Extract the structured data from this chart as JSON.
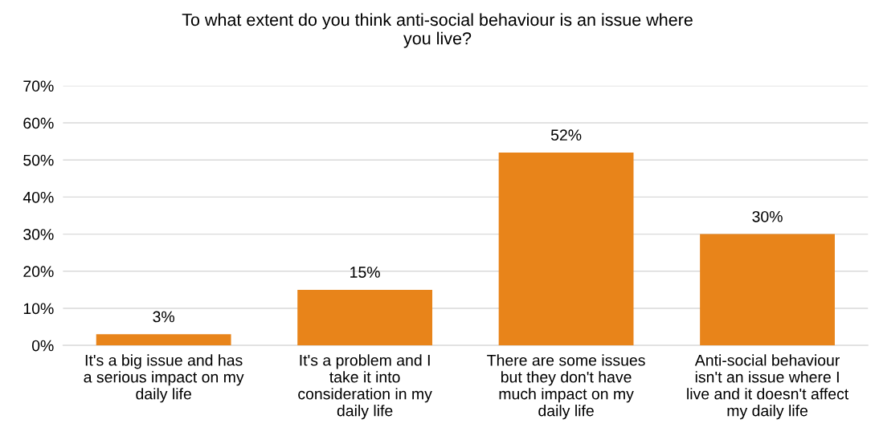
{
  "chart_data": {
    "type": "bar",
    "title": "To what extent do you think anti-social behaviour is an issue where\nyou live?",
    "categories": [
      "It's a big issue and has\na serious impact on my\ndaily life",
      "It's a problem and I\ntake it into\nconsideration in my\ndaily life",
      "There are some issues\nbut they don't have\nmuch impact on my\ndaily life",
      "Anti-social behaviour\nisn't an issue where I\nlive and it doesn't affect\nmy daily life"
    ],
    "values": [
      3,
      15,
      52,
      30
    ],
    "value_labels": [
      "3%",
      "15%",
      "52%",
      "30%"
    ],
    "color": "#e8841a",
    "ylim": [
      0,
      70
    ],
    "yticks": [
      {
        "value": 0,
        "label": "0%"
      },
      {
        "value": 10,
        "label": "10%"
      },
      {
        "value": 20,
        "label": "20%"
      },
      {
        "value": 30,
        "label": "30%"
      },
      {
        "value": 40,
        "label": "40%"
      },
      {
        "value": 50,
        "label": "50%"
      },
      {
        "value": 60,
        "label": "60%"
      },
      {
        "value": 70,
        "label": "70%"
      }
    ],
    "grid": "y",
    "legend": false
  }
}
